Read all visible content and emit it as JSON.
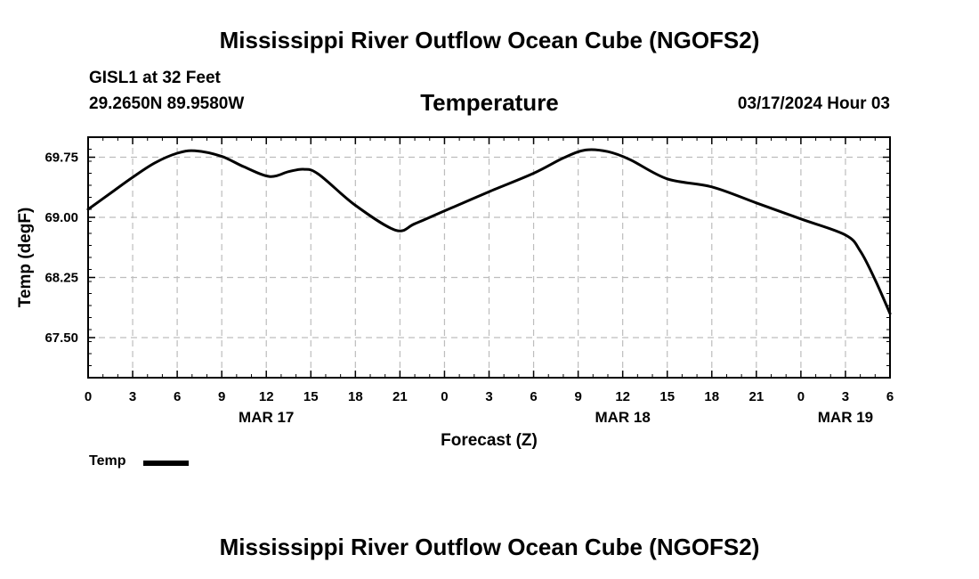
{
  "page": {
    "title": "Mississippi River Outflow Ocean Cube (NGOFS2)",
    "bottom_title": "Mississippi River Outflow Ocean Cube (NGOFS2)",
    "station_name": "GISL1 at 32 Feet",
    "station_coords": "29.2650N  89.9580W",
    "variable": "Temperature",
    "date": "03/17/2024 Hour 03"
  },
  "chart_data": {
    "type": "line",
    "title": "Temperature",
    "xlabel": "Forecast (Z)",
    "ylabel": "Temp (degF)",
    "xlim": [
      0,
      54
    ],
    "ylim": [
      67.0,
      70.0
    ],
    "grid": true,
    "x_ticks": [
      0,
      3,
      6,
      9,
      12,
      15,
      18,
      21,
      24,
      27,
      30,
      33,
      36,
      39,
      42,
      45,
      48,
      51,
      54
    ],
    "x_tick_labels": [
      "0",
      "3",
      "6",
      "9",
      "12",
      "15",
      "18",
      "21",
      "0",
      "3",
      "6",
      "9",
      "12",
      "15",
      "18",
      "21",
      "0",
      "3",
      "6"
    ],
    "y_ticks": [
      67.5,
      68.25,
      69.0,
      69.75
    ],
    "y_tick_labels": [
      "67.50",
      "68.25",
      "69.00",
      "69.75"
    ],
    "date_labels": [
      {
        "x": 12,
        "label": "MAR 17"
      },
      {
        "x": 36,
        "label": "MAR 18"
      },
      {
        "x": 51,
        "label": "MAR 19"
      }
    ],
    "legend": {
      "position": "bottom-left",
      "entries": [
        "Temp"
      ]
    },
    "series": [
      {
        "name": "Temp",
        "x": [
          0,
          1.5,
          3,
          4.5,
          6,
          7.2,
          9,
          10.5,
          12.2,
          13.5,
          14.5,
          15.5,
          18,
          20.7,
          22,
          24,
          27,
          30,
          32,
          33.5,
          35,
          36.5,
          39,
          42,
          45,
          48,
          51,
          52,
          53,
          54
        ],
        "y": [
          69.1,
          69.3,
          69.5,
          69.68,
          69.8,
          69.83,
          69.76,
          69.63,
          69.51,
          69.57,
          69.6,
          69.54,
          69.15,
          68.84,
          68.92,
          69.08,
          69.32,
          69.55,
          69.74,
          69.84,
          69.82,
          69.72,
          69.48,
          69.38,
          69.18,
          68.98,
          68.78,
          68.58,
          68.22,
          67.8
        ]
      }
    ]
  }
}
